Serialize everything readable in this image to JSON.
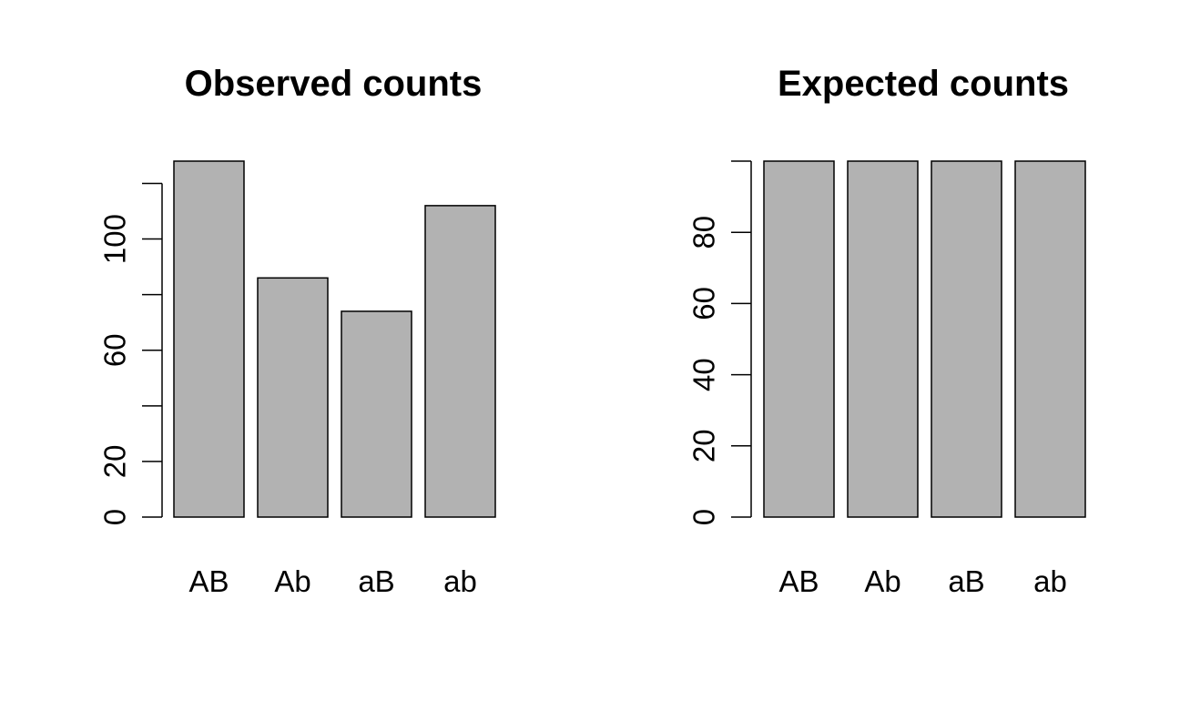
{
  "chart_data": [
    {
      "type": "bar",
      "title": "Observed counts",
      "categories": [
        "AB",
        "Ab",
        "aB",
        "ab"
      ],
      "values": [
        128,
        86,
        74,
        112
      ],
      "ylim": [
        0,
        128
      ],
      "yticks": [
        0,
        20,
        40,
        60,
        80,
        100,
        120
      ],
      "ytick_labels": [
        "0",
        "20",
        "",
        "60",
        "",
        "100",
        ""
      ],
      "bar_color": "#b2b2b2"
    },
    {
      "type": "bar",
      "title": "Expected counts",
      "categories": [
        "AB",
        "Ab",
        "aB",
        "ab"
      ],
      "values": [
        100,
        100,
        100,
        100
      ],
      "ylim": [
        0,
        100
      ],
      "yticks": [
        0,
        20,
        40,
        60,
        80,
        100
      ],
      "ytick_labels": [
        "0",
        "20",
        "40",
        "60",
        "80",
        ""
      ],
      "bar_color": "#b2b2b2"
    }
  ]
}
